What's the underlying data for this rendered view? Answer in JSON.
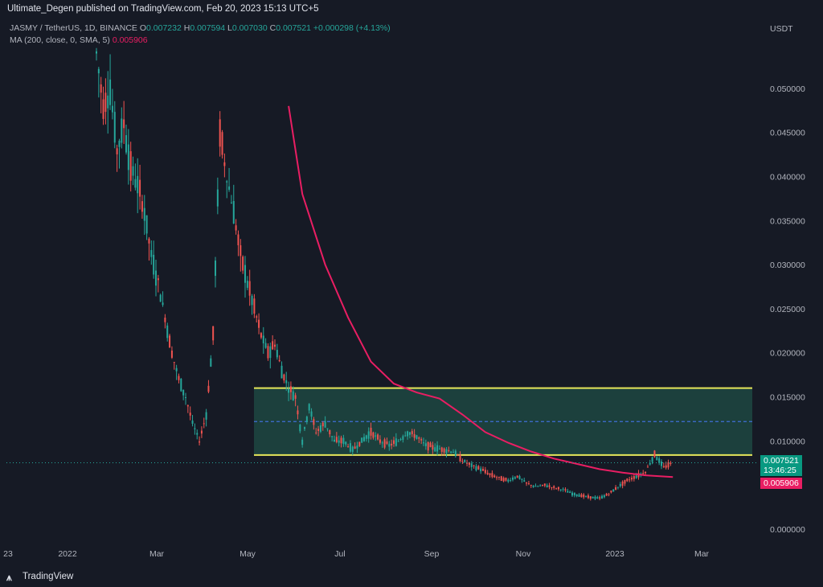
{
  "header": {
    "published": "Ultimate_Degen published on TradingView.com, Feb 20, 2023 15:13 UTC+5"
  },
  "legend": {
    "symbol": "JASMY / TetherUS, 1D, BINANCE",
    "o_label": "O",
    "o_value": "0.007232",
    "h_label": "H",
    "h_value": "0.007594",
    "l_label": "L",
    "l_value": "0.007030",
    "c_label": "C",
    "c_value": "0.007521",
    "change": "+0.000298 (+4.13%)",
    "ma_label": "MA (200, close, 0, SMA, 5)",
    "ma_value": "0.005906"
  },
  "axis": {
    "currency": "USDT"
  },
  "tags": {
    "price": "0.007521",
    "countdown": "13:46:25",
    "ma": "0.005906"
  },
  "footer": {
    "brand": "TradingView",
    "logo": "tradingview-logo-icon"
  },
  "colors": {
    "up": "#26a69a",
    "down": "#ef5350",
    "ma": "#e91e63",
    "zone": "#1f4d45",
    "zone_line": "#e6e65a",
    "mid_line": "#3f6fd8"
  },
  "chart_data": {
    "type": "line",
    "title": "",
    "y_ticks": [
      "0.050000",
      "0.045000",
      "0.040000",
      "0.035000",
      "0.030000",
      "0.025000",
      "0.020000",
      "0.015000",
      "0.010000",
      "0.000000"
    ],
    "x_ticks": [
      "23",
      "2022",
      "Mar",
      "May",
      "Jul",
      "Sep",
      "Nov",
      "2023",
      "Mar"
    ],
    "ylim": [
      0,
      0.054
    ],
    "price_path": [
      [
        0,
        0.054
      ],
      [
        3,
        0.048
      ],
      [
        6,
        0.05
      ],
      [
        9,
        0.043
      ],
      [
        12,
        0.046
      ],
      [
        15,
        0.041
      ],
      [
        18,
        0.039
      ],
      [
        21,
        0.036
      ],
      [
        24,
        0.031
      ],
      [
        27,
        0.028
      ],
      [
        30,
        0.024
      ],
      [
        33,
        0.02
      ],
      [
        36,
        0.017
      ],
      [
        39,
        0.015
      ],
      [
        42,
        0.012
      ],
      [
        45,
        0.01
      ],
      [
        48,
        0.013
      ],
      [
        51,
        0.022
      ],
      [
        54,
        0.045
      ],
      [
        57,
        0.04
      ],
      [
        60,
        0.036
      ],
      [
        63,
        0.031
      ],
      [
        66,
        0.028
      ],
      [
        69,
        0.025
      ],
      [
        72,
        0.022
      ],
      [
        75,
        0.02
      ],
      [
        78,
        0.021
      ],
      [
        81,
        0.018
      ],
      [
        84,
        0.016
      ],
      [
        87,
        0.015
      ],
      [
        90,
        0.01
      ],
      [
        93,
        0.014
      ],
      [
        96,
        0.011
      ],
      [
        100,
        0.012
      ],
      [
        104,
        0.01
      ],
      [
        108,
        0.01
      ],
      [
        112,
        0.009
      ],
      [
        116,
        0.01
      ],
      [
        120,
        0.011
      ],
      [
        124,
        0.01
      ],
      [
        128,
        0.0095
      ],
      [
        132,
        0.01
      ],
      [
        136,
        0.011
      ],
      [
        140,
        0.0105
      ],
      [
        144,
        0.0095
      ],
      [
        148,
        0.0092
      ],
      [
        152,
        0.009
      ],
      [
        156,
        0.0088
      ],
      [
        160,
        0.0078
      ],
      [
        164,
        0.0072
      ],
      [
        168,
        0.0068
      ],
      [
        172,
        0.0062
      ],
      [
        176,
        0.0058
      ],
      [
        180,
        0.0055
      ],
      [
        184,
        0.006
      ],
      [
        188,
        0.0052
      ],
      [
        192,
        0.0048
      ],
      [
        196,
        0.005
      ],
      [
        200,
        0.0047
      ],
      [
        204,
        0.0045
      ],
      [
        208,
        0.004
      ],
      [
        212,
        0.0038
      ],
      [
        216,
        0.0036
      ],
      [
        220,
        0.0035
      ],
      [
        224,
        0.004
      ],
      [
        228,
        0.0048
      ],
      [
        232,
        0.0055
      ],
      [
        236,
        0.006
      ],
      [
        240,
        0.0065
      ],
      [
        244,
        0.0085
      ],
      [
        248,
        0.007
      ],
      [
        252,
        0.0075
      ]
    ],
    "ma_path": [
      [
        84,
        0.048
      ],
      [
        90,
        0.038
      ],
      [
        100,
        0.03
      ],
      [
        110,
        0.024
      ],
      [
        120,
        0.019
      ],
      [
        130,
        0.0165
      ],
      [
        140,
        0.0155
      ],
      [
        150,
        0.0148
      ],
      [
        160,
        0.013
      ],
      [
        170,
        0.011
      ],
      [
        180,
        0.0098
      ],
      [
        190,
        0.0088
      ],
      [
        200,
        0.008
      ],
      [
        210,
        0.0074
      ],
      [
        220,
        0.0068
      ],
      [
        230,
        0.0064
      ],
      [
        240,
        0.0061
      ],
      [
        252,
        0.0059
      ]
    ],
    "zone": {
      "top": 0.016,
      "mid": 0.0122,
      "bottom": 0.0084,
      "x_start": 0.0,
      "x_end": 1.0
    }
  }
}
